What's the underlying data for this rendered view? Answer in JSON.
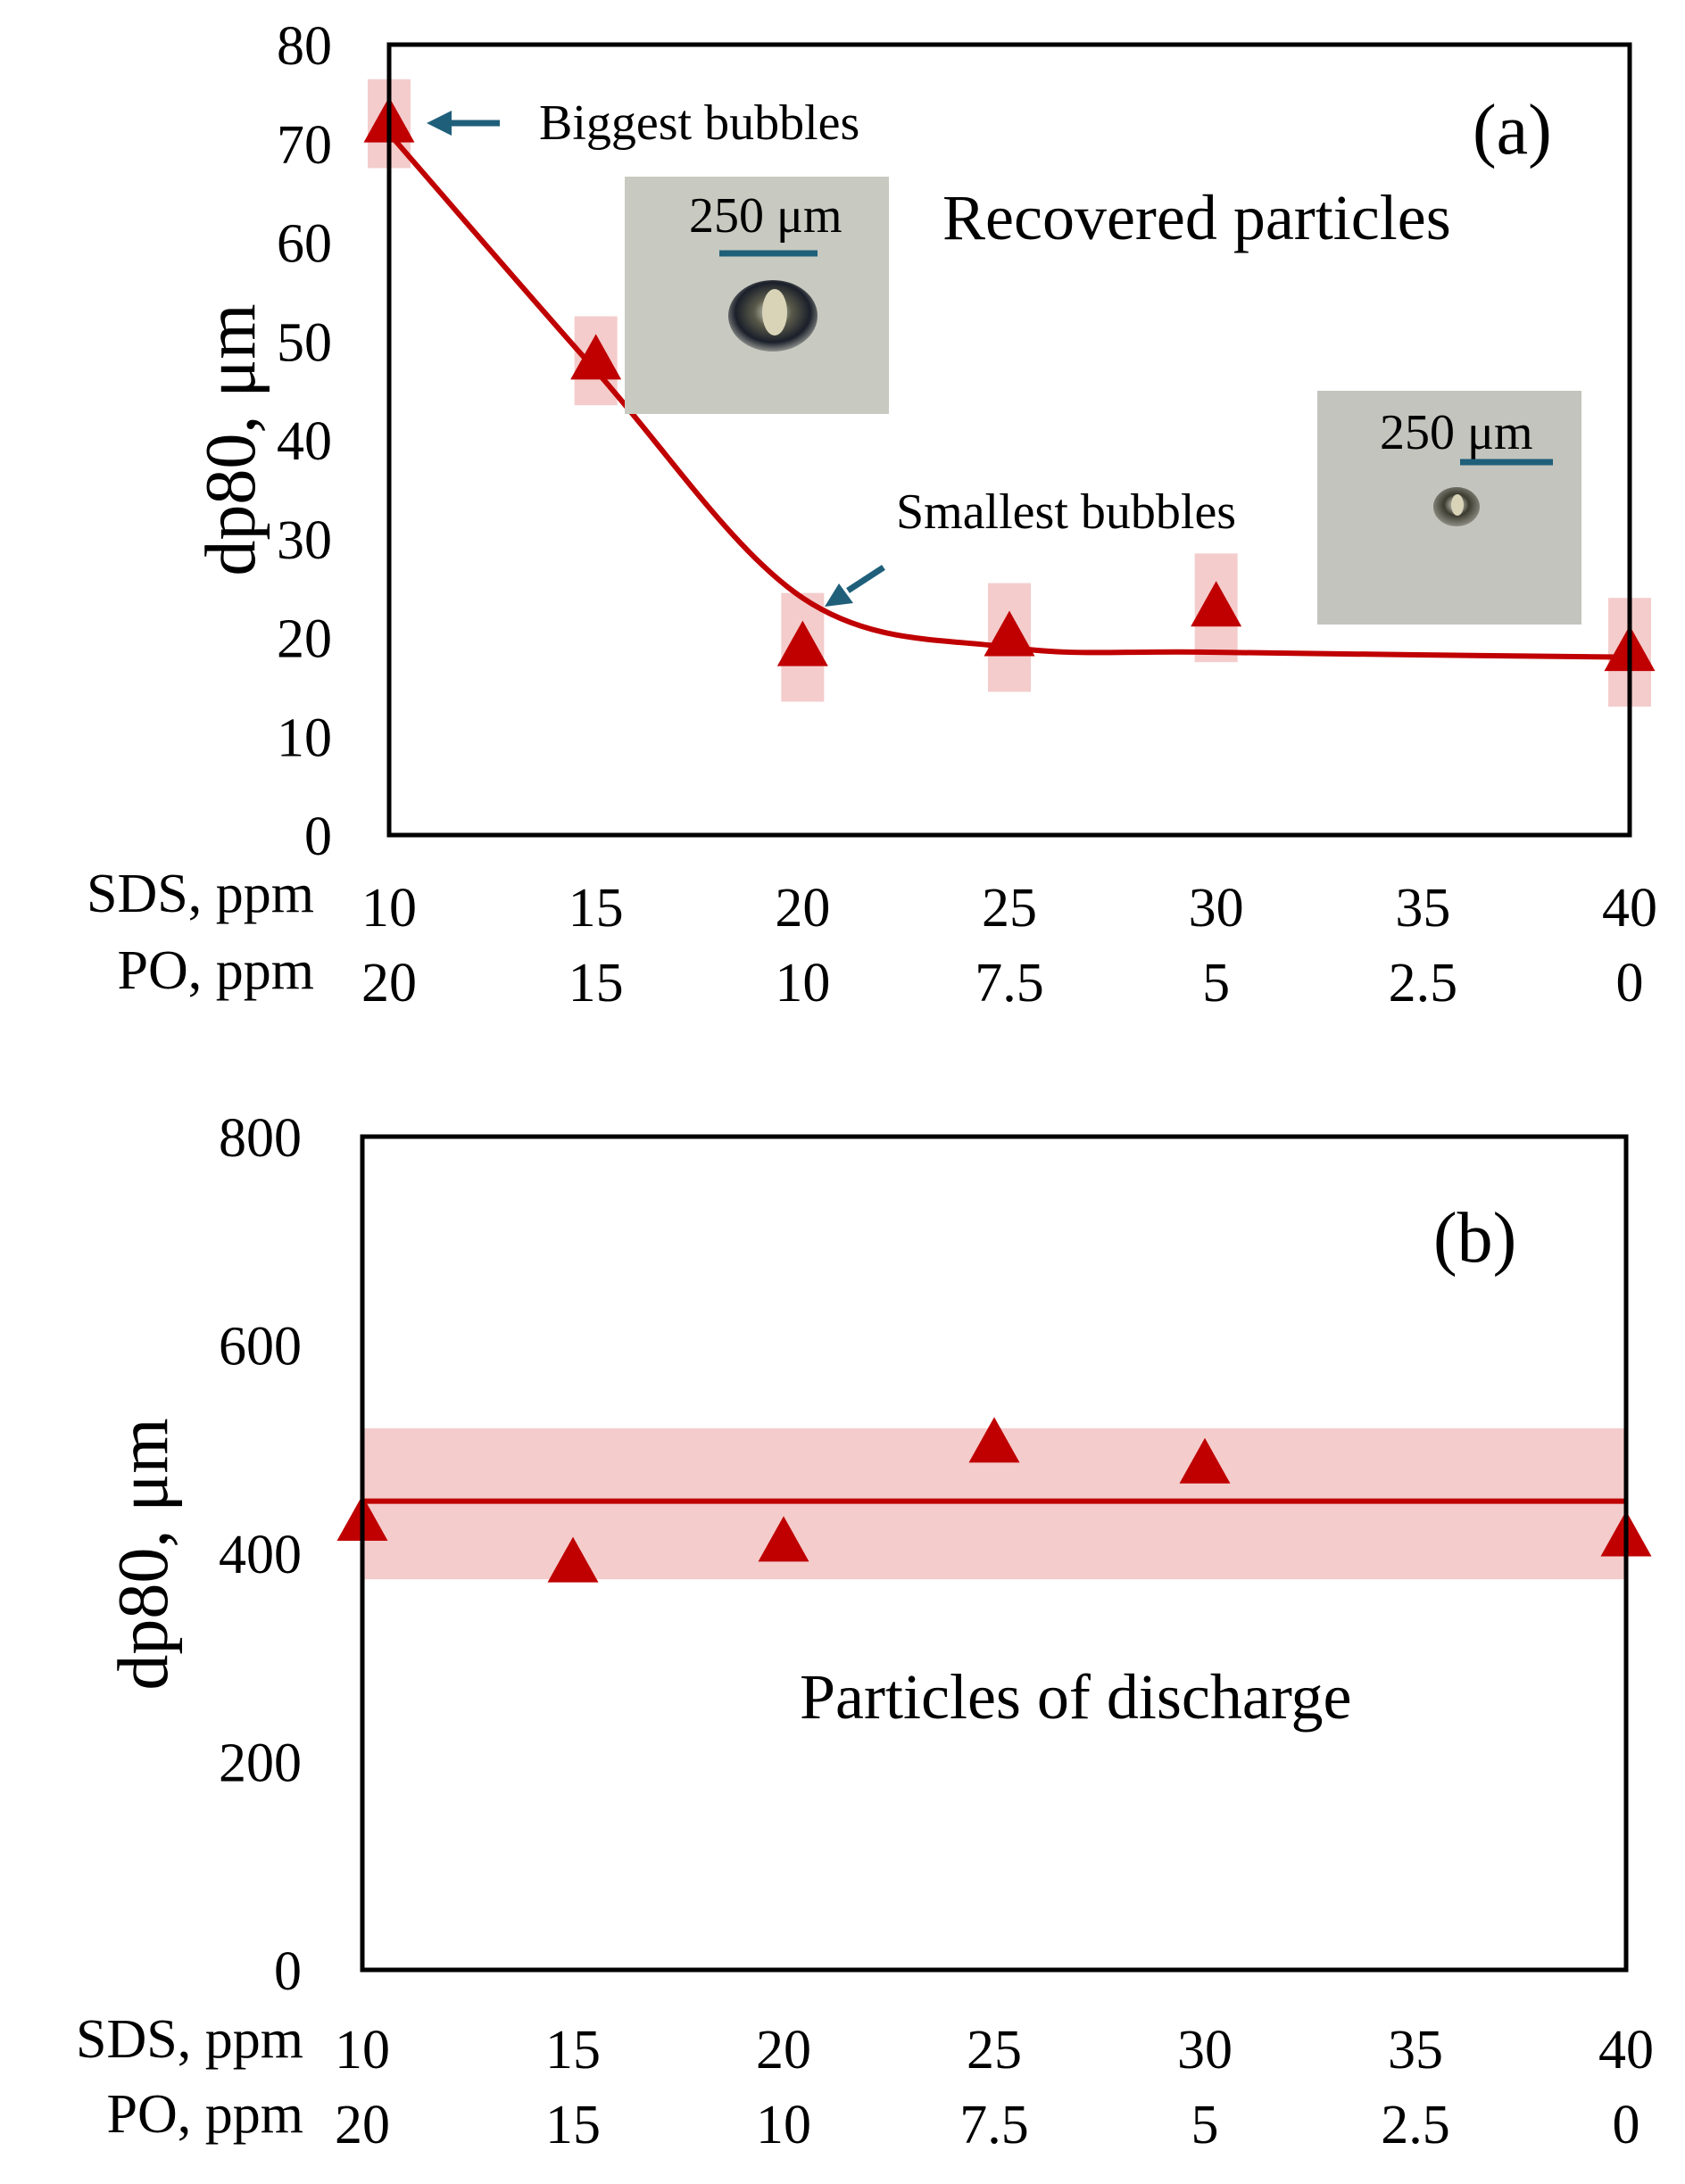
{
  "colors": {
    "series": "#c00000",
    "band": "#f4cccc",
    "arrow": "#1f5f7a",
    "axis": "#000000"
  },
  "chart_data": [
    {
      "type": "scatter",
      "panel_label": "(a)",
      "title": "Recovered particles",
      "ylabel": "dp80, μm",
      "ylim": [
        0,
        80
      ],
      "yticks": [
        "0",
        "10",
        "20",
        "30",
        "40",
        "50",
        "60",
        "70",
        "80"
      ],
      "row_labels": [
        "SDS, ppm",
        "PO, ppm"
      ],
      "sds": [
        "10",
        "15",
        "20",
        "25",
        "30",
        "35",
        "40"
      ],
      "po": [
        "20",
        "15",
        "10",
        "7.5",
        "5",
        "2.5",
        "0"
      ],
      "x": [
        10,
        15,
        20,
        25,
        30,
        40
      ],
      "values": [
        72,
        48,
        19,
        20,
        23,
        18.5
      ],
      "uncertainty": [
        4.5,
        4.5,
        5.5,
        5.5,
        5.5,
        5.5
      ],
      "trend": [
        [
          10,
          71
        ],
        [
          15,
          47
        ],
        [
          20,
          24
        ],
        [
          25,
          19
        ],
        [
          30,
          18.5
        ],
        [
          40,
          18
        ]
      ],
      "annotations": {
        "biggest": "Biggest bubbles",
        "smallest": "Smallest bubbles",
        "scale_1": "250 μm",
        "scale_2": "250 μm"
      }
    },
    {
      "type": "scatter",
      "panel_label": "(b)",
      "title": "Particles of discharge",
      "ylabel": "dp80, μm",
      "ylim": [
        0,
        800
      ],
      "yticks": [
        "0",
        "200",
        "400",
        "600",
        "800"
      ],
      "row_labels": [
        "SDS, ppm",
        "PO, ppm"
      ],
      "sds": [
        "10",
        "15",
        "20",
        "25",
        "30",
        "35",
        "40"
      ],
      "po": [
        "20",
        "15",
        "10",
        "7.5",
        "5",
        "2.5",
        "0"
      ],
      "x": [
        10,
        15,
        20,
        25,
        30,
        40
      ],
      "values": [
        430,
        390,
        410,
        505,
        485,
        415
      ],
      "mean": 450,
      "band": [
        375,
        520
      ]
    }
  ]
}
